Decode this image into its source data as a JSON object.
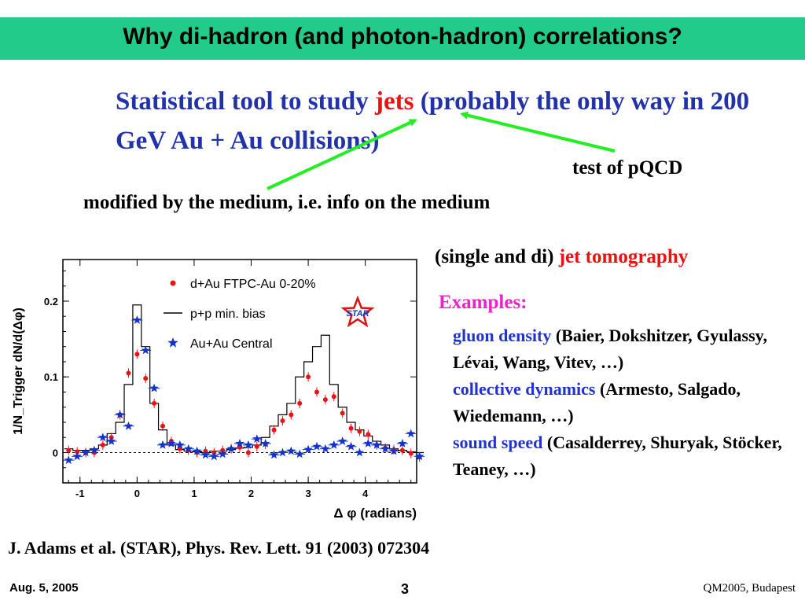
{
  "slide": {
    "title": "Why di-hadron (and photon-hadron) correlations?",
    "intro": {
      "part1": "Statistical tool to study ",
      "jets": "jets",
      "part2": " (probably the only way in 200 GeV Au + Au collisions)"
    },
    "pqcd": "test of pQCD",
    "modified": "modified by the medium, i.e. info on the medium",
    "tomography": {
      "prefix": "(single and di) ",
      "highlight": "jet tomography"
    },
    "examples_title": "Examples:",
    "examples": [
      {
        "topic": "gluon density",
        "authors": " (Baier, Dokshitzer, Gyulassy,  Lévai, Wang,  Vitev, …)"
      },
      {
        "topic": "collective dynamics",
        "authors": " (Armesto, Salgado, Wiedemann, …)"
      },
      {
        "topic": "sound speed",
        "authors": " (Casalderrey, Shuryak, Stöcker, Teaney, …)"
      }
    ],
    "reference": "J. Adams et al. (STAR), Phys. Rev. Lett. 91 (2003) 072304",
    "date": "Aug. 5, 2005",
    "page": "3",
    "conference": "QM2005, Budapest",
    "colors": {
      "title_bar": "#22cc88",
      "intro_text": "#2233aa",
      "highlight": "#ee1111",
      "examples_title": "#ee22cc",
      "topic": "#2233cc",
      "arrow": "#22ee22"
    }
  },
  "chart_data": {
    "type": "scatter",
    "xlabel": "Δ  φ (radians)",
    "ylabel": "1/N_Trigger dN/d(Δφ)",
    "x_ticks": [
      "-1",
      "0",
      "1",
      "2",
      "3",
      "4"
    ],
    "y_ticks": [
      "0",
      "0.1",
      "0.2"
    ],
    "xlim": [
      -1.3,
      4.9
    ],
    "ylim": [
      -0.04,
      0.255
    ],
    "logo": "STAR",
    "legend_placement": "top-left",
    "series": [
      {
        "name": "d+Au FTPC-Au 0-20%",
        "marker": "dot",
        "color": "#ee1111",
        "points": [
          [
            -1.2,
            0.003
          ],
          [
            -1.05,
            0.001
          ],
          [
            -0.9,
            0.0
          ],
          [
            -0.75,
            0.0
          ],
          [
            -0.6,
            0.01
          ],
          [
            -0.45,
            0.02
          ],
          [
            -0.3,
            0.05
          ],
          [
            -0.15,
            0.105
          ],
          [
            0.0,
            0.13
          ],
          [
            0.15,
            0.098
          ],
          [
            0.3,
            0.065
          ],
          [
            0.45,
            0.035
          ],
          [
            0.6,
            0.015
          ],
          [
            0.75,
            0.005
          ],
          [
            0.9,
            0.003
          ],
          [
            1.05,
            0.0
          ],
          [
            1.2,
            0.002
          ],
          [
            1.35,
            0.0
          ],
          [
            1.5,
            0.003
          ],
          [
            1.65,
            0.005
          ],
          [
            1.8,
            0.007
          ],
          [
            1.95,
            0.0
          ],
          [
            2.1,
            0.008
          ],
          [
            2.25,
            0.011
          ],
          [
            2.4,
            0.03
          ],
          [
            2.55,
            0.042
          ],
          [
            2.7,
            0.05
          ],
          [
            2.85,
            0.065
          ],
          [
            3.0,
            0.1
          ],
          [
            3.15,
            0.08
          ],
          [
            3.3,
            0.07
          ],
          [
            3.45,
            0.074
          ],
          [
            3.6,
            0.052
          ],
          [
            3.75,
            0.032
          ],
          [
            3.9,
            0.028
          ],
          [
            4.05,
            0.024
          ],
          [
            4.2,
            0.01
          ],
          [
            4.35,
            0.006
          ],
          [
            4.5,
            0.004
          ],
          [
            4.65,
            0.003
          ],
          [
            4.8,
            -0.001
          ],
          [
            4.95,
            -0.006
          ]
        ]
      },
      {
        "name": "p+p min. bias",
        "marker": "line",
        "color": "#000000",
        "points": [
          [
            -1.2,
            0.005
          ],
          [
            -1.05,
            0.003
          ],
          [
            -0.9,
            0.003
          ],
          [
            -0.75,
            0.005
          ],
          [
            -0.6,
            0.01
          ],
          [
            -0.45,
            0.025
          ],
          [
            -0.3,
            0.04
          ],
          [
            -0.15,
            0.09
          ],
          [
            0.0,
            0.195
          ],
          [
            0.15,
            0.14
          ],
          [
            0.3,
            0.065
          ],
          [
            0.45,
            0.03
          ],
          [
            0.6,
            0.01
          ],
          [
            0.75,
            0.004
          ],
          [
            0.9,
            0.002
          ],
          [
            1.05,
            0.001
          ],
          [
            1.2,
            0.0
          ],
          [
            1.35,
            0.002
          ],
          [
            1.5,
            0.002
          ],
          [
            1.65,
            0.004
          ],
          [
            1.8,
            0.006
          ],
          [
            1.95,
            0.007
          ],
          [
            2.1,
            0.01
          ],
          [
            2.25,
            0.02
          ],
          [
            2.4,
            0.035
          ],
          [
            2.55,
            0.05
          ],
          [
            2.7,
            0.065
          ],
          [
            2.85,
            0.1
          ],
          [
            3.0,
            0.12
          ],
          [
            3.15,
            0.14
          ],
          [
            3.3,
            0.155
          ],
          [
            3.45,
            0.09
          ],
          [
            3.6,
            0.06
          ],
          [
            3.75,
            0.04
          ],
          [
            3.9,
            0.03
          ],
          [
            4.05,
            0.022
          ],
          [
            4.2,
            0.015
          ],
          [
            4.35,
            0.01
          ],
          [
            4.5,
            0.005
          ],
          [
            4.65,
            0.003
          ],
          [
            4.8,
            0.001
          ],
          [
            4.95,
            0.0
          ]
        ]
      },
      {
        "name": "Au+Au Central",
        "marker": "star",
        "color": "#1133cc",
        "points": [
          [
            -1.2,
            -0.01
          ],
          [
            -1.05,
            -0.005
          ],
          [
            -0.9,
            0.0
          ],
          [
            -0.75,
            0.003
          ],
          [
            -0.6,
            0.02
          ],
          [
            -0.45,
            0.015
          ],
          [
            -0.3,
            0.05
          ],
          [
            -0.15,
            0.035
          ],
          [
            0.0,
            0.175
          ],
          [
            0.15,
            0.135
          ],
          [
            0.3,
            0.085
          ],
          [
            0.45,
            0.01
          ],
          [
            0.6,
            0.012
          ],
          [
            0.75,
            0.01
          ],
          [
            0.9,
            0.005
          ],
          [
            1.05,
            0.002
          ],
          [
            1.2,
            -0.003
          ],
          [
            1.35,
            -0.005
          ],
          [
            1.5,
            -0.002
          ],
          [
            1.65,
            0.005
          ],
          [
            1.8,
            0.012
          ],
          [
            1.95,
            0.01
          ],
          [
            2.1,
            0.018
          ],
          [
            2.25,
            0.012
          ],
          [
            2.4,
            -0.003
          ],
          [
            2.55,
            0.0
          ],
          [
            2.7,
            0.002
          ],
          [
            2.85,
            -0.002
          ],
          [
            3.0,
            0.004
          ],
          [
            3.15,
            0.008
          ],
          [
            3.3,
            0.005
          ],
          [
            3.45,
            0.01
          ],
          [
            3.6,
            0.015
          ],
          [
            3.75,
            0.008
          ],
          [
            3.9,
            0.0
          ],
          [
            4.05,
            0.012
          ],
          [
            4.2,
            0.01
          ],
          [
            4.35,
            0.005
          ],
          [
            4.5,
            0.002
          ],
          [
            4.65,
            0.012
          ],
          [
            4.8,
            0.025
          ],
          [
            4.95,
            -0.005
          ]
        ]
      }
    ]
  }
}
